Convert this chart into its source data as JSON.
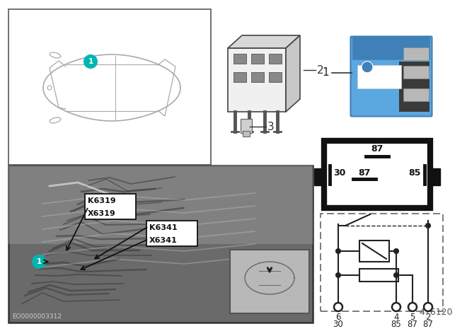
{
  "bg_color": "#ffffff",
  "teal_color": "#00b5b0",
  "blue_relay": "#5ba8e0",
  "blue_relay_dark": "#4080b8",
  "blue_relay_darker": "#3060a0",
  "doc_number": "EO0000003312",
  "part_number": "476120",
  "label_1": "1",
  "label_2": "2",
  "label_3": "3",
  "pin_row1": [
    "6",
    "4",
    "5",
    "2"
  ],
  "pin_row2": [
    "30",
    "85",
    "87",
    "87"
  ],
  "k1": "K6319",
  "x1": "X6319",
  "k2": "K6341",
  "x2": "X6341",
  "sch_top": "87",
  "sch_ml": "30",
  "sch_mc": "87",
  "sch_mr": "85"
}
